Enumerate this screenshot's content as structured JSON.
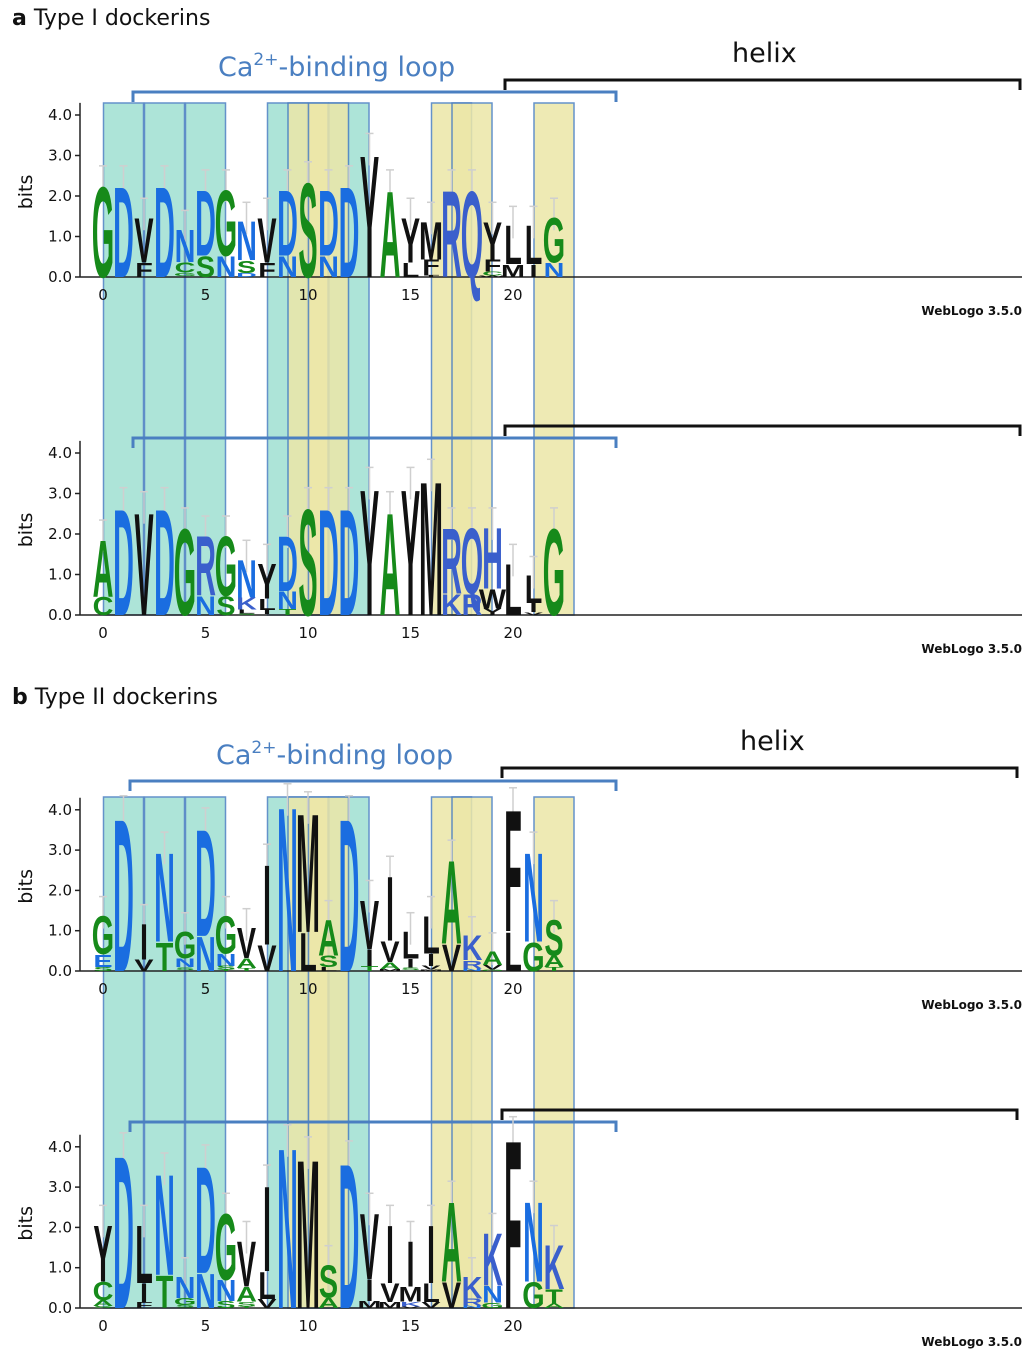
{
  "panels": [
    {
      "letter": "a",
      "title": "Type I dockerins"
    },
    {
      "letter": "b",
      "title": "Type II dockerins"
    }
  ],
  "annotations": {
    "loop_label_prefix": "Ca",
    "loop_label_sup": "2+",
    "loop_label_suffix": "-binding loop",
    "helix_label": "helix"
  },
  "colors": {
    "loop_highlight": "#9fe0d2",
    "helix_highlight": "#ece7a8",
    "loop_bracket": "#4a7fc1",
    "helix_bracket": "#111111",
    "aa_acidic": "#1a6de0",
    "aa_polar": "#168a1a",
    "aa_hydrophobic": "#111111",
    "aa_basic": "#3a5fcc"
  },
  "chart_data": [
    {
      "type": "sequence-logo",
      "panel": "a",
      "ylabel": "bits",
      "yticks": [
        "0.0",
        "1.0",
        "2.0",
        "3.0",
        "4.0"
      ],
      "ylim": [
        0,
        4.3
      ],
      "xticks": [
        "0",
        "5",
        "10",
        "15",
        "20"
      ],
      "credit": "WebLogo 3.5.0",
      "loop_positions": [
        1,
        3,
        5,
        9,
        12
      ],
      "helix_positions": [
        10,
        11,
        17,
        18,
        22
      ],
      "columns": [
        {
          "pos": 0,
          "height": 2.3,
          "letters": "G"
        },
        {
          "pos": 1,
          "height": 2.3,
          "letters": "D"
        },
        {
          "pos": 2,
          "height": 1.5,
          "letters": "VF"
        },
        {
          "pos": 3,
          "height": 2.3,
          "letters": "D"
        },
        {
          "pos": 4,
          "height": 1.2,
          "letters": "NCGQ"
        },
        {
          "pos": 5,
          "height": 2.2,
          "letters": "DS"
        },
        {
          "pos": 6,
          "height": 2.2,
          "letters": "GN"
        },
        {
          "pos": 7,
          "height": 1.4,
          "letters": "NSD"
        },
        {
          "pos": 8,
          "height": 1.5,
          "letters": "VF"
        },
        {
          "pos": 9,
          "height": 2.2,
          "letters": "DN"
        },
        {
          "pos": 10,
          "height": 2.4,
          "letters": "S"
        },
        {
          "pos": 11,
          "height": 2.2,
          "letters": "DN"
        },
        {
          "pos": 12,
          "height": 2.3,
          "letters": "D"
        },
        {
          "pos": 13,
          "height": 3.1,
          "letters": "Y"
        },
        {
          "pos": 14,
          "height": 2.2,
          "letters": "A"
        },
        {
          "pos": 15,
          "height": 1.5,
          "letters": "YL"
        },
        {
          "pos": 16,
          "height": 1.4,
          "letters": "MFLI"
        },
        {
          "pos": 17,
          "height": 2.2,
          "letters": "R"
        },
        {
          "pos": 18,
          "height": 2.2,
          "letters": "Q"
        },
        {
          "pos": 19,
          "height": 1.4,
          "letters": "YFCW"
        },
        {
          "pos": 20,
          "height": 1.3,
          "letters": "LM"
        },
        {
          "pos": 21,
          "height": 1.3,
          "letters": "LI"
        },
        {
          "pos": 22,
          "height": 1.5,
          "letters": "GN"
        }
      ]
    },
    {
      "type": "sequence-logo",
      "panel": "a",
      "ylabel": "bits",
      "yticks": [
        "0.0",
        "1.0",
        "2.0",
        "3.0",
        "4.0"
      ],
      "ylim": [
        0,
        4.3
      ],
      "xticks": [
        "0",
        "5",
        "10",
        "15",
        "20"
      ],
      "credit": "WebLogo 3.5.0",
      "loop_positions": [
        1,
        3,
        5,
        9,
        12
      ],
      "helix_positions": [
        10,
        11,
        17,
        18,
        22
      ],
      "columns": [
        {
          "pos": 0,
          "height": 1.9,
          "letters": "AC"
        },
        {
          "pos": 1,
          "height": 2.7,
          "letters": "D"
        },
        {
          "pos": 2,
          "height": 2.6,
          "letters": "V"
        },
        {
          "pos": 3,
          "height": 2.7,
          "letters": "D"
        },
        {
          "pos": 4,
          "height": 2.2,
          "letters": "G"
        },
        {
          "pos": 5,
          "height": 2.0,
          "letters": "RN"
        },
        {
          "pos": 6,
          "height": 2.0,
          "letters": "GS"
        },
        {
          "pos": 7,
          "height": 1.4,
          "letters": "NKLS"
        },
        {
          "pos": 8,
          "height": 1.3,
          "letters": "YLIV"
        },
        {
          "pos": 9,
          "height": 2.0,
          "letters": "DNT"
        },
        {
          "pos": 10,
          "height": 2.7,
          "letters": "S"
        },
        {
          "pos": 11,
          "height": 2.7,
          "letters": "D"
        },
        {
          "pos": 12,
          "height": 2.7,
          "letters": "D"
        },
        {
          "pos": 13,
          "height": 3.2,
          "letters": "Y"
        },
        {
          "pos": 14,
          "height": 2.6,
          "letters": "A"
        },
        {
          "pos": 15,
          "height": 3.2,
          "letters": "Y"
        },
        {
          "pos": 16,
          "height": 3.4,
          "letters": "M"
        },
        {
          "pos": 17,
          "height": 2.2,
          "letters": "RK"
        },
        {
          "pos": 18,
          "height": 2.2,
          "letters": "QR"
        },
        {
          "pos": 19,
          "height": 2.2,
          "letters": "HWY"
        },
        {
          "pos": 20,
          "height": 1.3,
          "letters": "L"
        },
        {
          "pos": 21,
          "height": 1.0,
          "letters": "LIV"
        },
        {
          "pos": 22,
          "height": 2.2,
          "letters": "G"
        }
      ]
    },
    {
      "type": "sequence-logo",
      "panel": "b",
      "ylabel": "bits",
      "yticks": [
        "0.0",
        "1.0",
        "2.0",
        "3.0",
        "4.0"
      ],
      "ylim": [
        0,
        4.3
      ],
      "xticks": [
        "0",
        "5",
        "10",
        "15",
        "20"
      ],
      "credit": "WebLogo 3.5.0",
      "loop_positions": [
        1,
        3,
        5,
        9,
        12
      ],
      "helix_positions": [
        10,
        11,
        17,
        18,
        22
      ],
      "columns": [
        {
          "pos": 0,
          "height": 1.4,
          "letters": "GES"
        },
        {
          "pos": 1,
          "height": 3.9,
          "letters": "D"
        },
        {
          "pos": 2,
          "height": 1.2,
          "letters": "IV"
        },
        {
          "pos": 3,
          "height": 3.0,
          "letters": "NT"
        },
        {
          "pos": 4,
          "height": 1.0,
          "letters": "GNSTK"
        },
        {
          "pos": 5,
          "height": 3.6,
          "letters": "DN"
        },
        {
          "pos": 6,
          "height": 1.4,
          "letters": "GNST"
        },
        {
          "pos": 7,
          "height": 1.1,
          "letters": "VAT"
        },
        {
          "pos": 8,
          "height": 2.7,
          "letters": "IV"
        },
        {
          "pos": 9,
          "height": 4.2,
          "letters": "N"
        },
        {
          "pos": 10,
          "height": 4.0,
          "letters": "ML"
        },
        {
          "pos": 11,
          "height": 1.3,
          "letters": "ASL"
        },
        {
          "pos": 12,
          "height": 3.9,
          "letters": "D"
        },
        {
          "pos": 13,
          "height": 1.8,
          "letters": "VIT"
        },
        {
          "pos": 14,
          "height": 2.4,
          "letters": "IVAM"
        },
        {
          "pos": 15,
          "height": 1.0,
          "letters": "LISV"
        },
        {
          "pos": 16,
          "height": 1.4,
          "letters": "LIVM"
        },
        {
          "pos": 17,
          "height": 2.8,
          "letters": "AV"
        },
        {
          "pos": 18,
          "height": 0.9,
          "letters": "KRN"
        },
        {
          "pos": 19,
          "height": 0.5,
          "letters": "AVG"
        },
        {
          "pos": 20,
          "height": 4.1,
          "letters": "FL"
        },
        {
          "pos": 21,
          "height": 3.0,
          "letters": "NG"
        },
        {
          "pos": 22,
          "height": 1.3,
          "letters": "SAT"
        }
      ]
    },
    {
      "type": "sequence-logo",
      "panel": "b",
      "ylabel": "bits",
      "yticks": [
        "0.0",
        "1.0",
        "2.0",
        "3.0",
        "4.0"
      ],
      "ylim": [
        0,
        4.3
      ],
      "xticks": [
        "0",
        "5",
        "10",
        "15",
        "20"
      ],
      "credit": "WebLogo 3.5.0",
      "loop_positions": [
        1,
        3,
        5,
        9,
        12
      ],
      "helix_positions": [
        10,
        11,
        17,
        18,
        22
      ],
      "columns": [
        {
          "pos": 0,
          "height": 2.1,
          "letters": "YCAS"
        },
        {
          "pos": 1,
          "height": 3.9,
          "letters": "D"
        },
        {
          "pos": 2,
          "height": 2.1,
          "letters": "LIF"
        },
        {
          "pos": 3,
          "height": 3.4,
          "letters": "NT"
        },
        {
          "pos": 4,
          "height": 0.8,
          "letters": "NGSR"
        },
        {
          "pos": 5,
          "height": 3.6,
          "letters": "DN"
        },
        {
          "pos": 6,
          "height": 2.4,
          "letters": "GNS"
        },
        {
          "pos": 7,
          "height": 1.7,
          "letters": "VAST"
        },
        {
          "pos": 8,
          "height": 3.1,
          "letters": "ILV"
        },
        {
          "pos": 9,
          "height": 4.1,
          "letters": "N"
        },
        {
          "pos": 10,
          "height": 3.8,
          "letters": "M"
        },
        {
          "pos": 11,
          "height": 1.1,
          "letters": "SA"
        },
        {
          "pos": 12,
          "height": 3.7,
          "letters": "D"
        },
        {
          "pos": 13,
          "height": 2.4,
          "letters": "VIM"
        },
        {
          "pos": 14,
          "height": 2.1,
          "letters": "IVM"
        },
        {
          "pos": 15,
          "height": 1.7,
          "letters": "IMKV"
        },
        {
          "pos": 16,
          "height": 2.1,
          "letters": "ILV"
        },
        {
          "pos": 17,
          "height": 2.7,
          "letters": "AV"
        },
        {
          "pos": 18,
          "height": 0.8,
          "letters": "KRN"
        },
        {
          "pos": 19,
          "height": 1.9,
          "letters": "KNG"
        },
        {
          "pos": 20,
          "height": 4.3,
          "letters": "F"
        },
        {
          "pos": 21,
          "height": 2.7,
          "letters": "NG"
        },
        {
          "pos": 22,
          "height": 1.6,
          "letters": "KTA"
        }
      ]
    }
  ]
}
